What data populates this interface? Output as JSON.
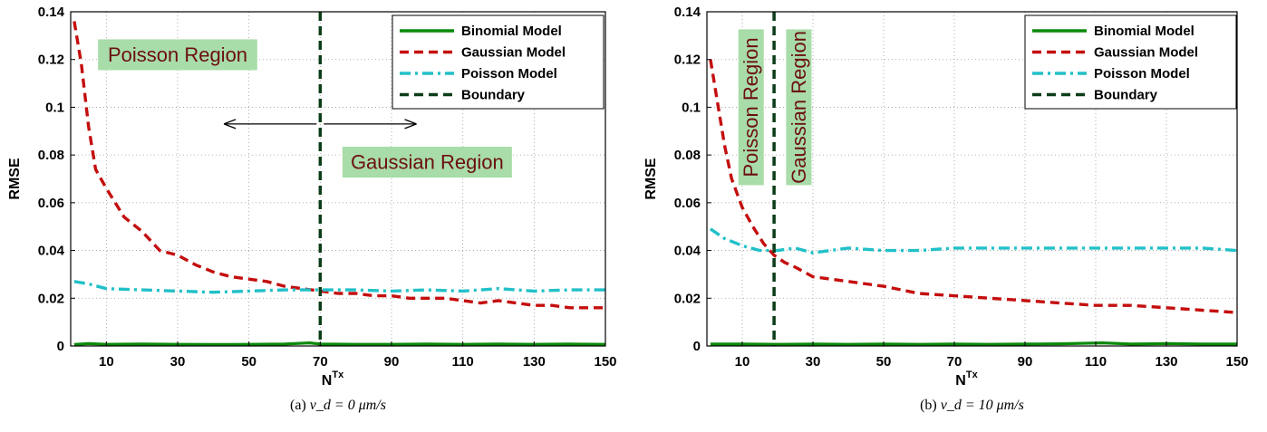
{
  "colors": {
    "binomial": "#0a8a0a",
    "gaussian": "#c40e0e",
    "poisson": "#22c0c8",
    "boundary": "#0b3d18",
    "region_bg": "#a8dca8",
    "region_text": "#6b0f0f"
  },
  "chart_data": [
    {
      "type": "line",
      "caption": {
        "prefix": "(a)",
        "formula": "v_d = 0 μm/s"
      },
      "xlabel": "N",
      "xlabel_sup": "Tx",
      "ylabel": "RMSE",
      "xlim": [
        0,
        150
      ],
      "ylim": [
        0,
        0.14
      ],
      "xticks": [
        10,
        30,
        50,
        70,
        90,
        110,
        130,
        150
      ],
      "yticks": [
        0,
        0.02,
        0.04,
        0.06,
        0.08,
        0.1,
        0.12,
        0.14
      ],
      "ytick_labels": [
        "0",
        "0.02",
        "0.04",
        "0.06",
        "0.08",
        "0.1",
        "0.12",
        "0.14"
      ],
      "grid": true,
      "legend_position": "top-right",
      "boundary_x": 70,
      "regions": [
        {
          "label": "Poisson Region",
          "x": 30,
          "y": 0.122
        },
        {
          "label": "Gaussian Region",
          "x": 100,
          "y": 0.077
        }
      ],
      "arrows": [
        {
          "from": 69,
          "to": 43,
          "y": 0.093
        },
        {
          "from": 71,
          "to": 97,
          "y": 0.093
        }
      ],
      "series": [
        {
          "name": "Binomial Model",
          "key": "binomial",
          "dash": "solid",
          "x": [
            1,
            5,
            10,
            20,
            30,
            40,
            50,
            60,
            67,
            70,
            80,
            90,
            100,
            110,
            120,
            130,
            140,
            150
          ],
          "y": [
            0.0006,
            0.001,
            0.0007,
            0.0008,
            0.0007,
            0.0006,
            0.0007,
            0.0008,
            0.0013,
            0.0008,
            0.0007,
            0.0007,
            0.0008,
            0.0007,
            0.0008,
            0.0007,
            0.0008,
            0.0007
          ]
        },
        {
          "name": "Gaussian Model",
          "key": "gaussian",
          "dash": "dashed",
          "x": [
            1,
            3,
            5,
            7,
            10,
            15,
            20,
            25,
            30,
            35,
            40,
            45,
            50,
            55,
            60,
            65,
            70,
            75,
            80,
            85,
            90,
            95,
            100,
            105,
            110,
            115,
            120,
            125,
            130,
            135,
            140,
            145,
            150
          ],
          "y": [
            0.136,
            0.118,
            0.092,
            0.074,
            0.066,
            0.054,
            0.048,
            0.04,
            0.038,
            0.034,
            0.031,
            0.029,
            0.028,
            0.027,
            0.025,
            0.024,
            0.023,
            0.022,
            0.022,
            0.021,
            0.021,
            0.02,
            0.02,
            0.02,
            0.019,
            0.018,
            0.019,
            0.018,
            0.017,
            0.017,
            0.016,
            0.016,
            0.016
          ]
        },
        {
          "name": "Poisson Model",
          "key": "poisson",
          "dash": "dashdot",
          "x": [
            1,
            5,
            10,
            20,
            30,
            40,
            50,
            60,
            70,
            80,
            90,
            100,
            110,
            120,
            130,
            140,
            150
          ],
          "y": [
            0.027,
            0.026,
            0.024,
            0.0235,
            0.023,
            0.0225,
            0.023,
            0.0235,
            0.0235,
            0.0235,
            0.023,
            0.0235,
            0.023,
            0.024,
            0.023,
            0.0235,
            0.0235
          ]
        },
        {
          "name": "Boundary",
          "key": "boundary",
          "dash": "dashed",
          "legend_only": true
        }
      ]
    },
    {
      "type": "line",
      "caption": {
        "prefix": "(b)",
        "formula": "v_d = 10 μm/s"
      },
      "xlabel": "N",
      "xlabel_sup": "Tx",
      "ylabel": "RMSE",
      "xlim": [
        0,
        150
      ],
      "ylim": [
        0,
        0.14
      ],
      "xticks": [
        10,
        30,
        50,
        70,
        90,
        110,
        130,
        150
      ],
      "yticks": [
        0,
        0.02,
        0.04,
        0.06,
        0.08,
        0.1,
        0.12,
        0.14
      ],
      "ytick_labels": [
        "0",
        "0.02",
        "0.04",
        "0.06",
        "0.08",
        "0.1",
        "0.12",
        "0.14"
      ],
      "grid": true,
      "legend_position": "top-right",
      "boundary_x": 19,
      "regions": [
        {
          "label": "Poisson Region",
          "x": 12.5,
          "y": 0.1,
          "vertical": true
        },
        {
          "label": "Gaussian Region",
          "x": 26,
          "y": 0.1,
          "vertical": true
        }
      ],
      "series": [
        {
          "name": "Binomial Model",
          "key": "binomial",
          "dash": "solid",
          "x": [
            1,
            10,
            20,
            30,
            40,
            50,
            60,
            70,
            80,
            90,
            100,
            112,
            120,
            130,
            140,
            150
          ],
          "y": [
            0.0008,
            0.0008,
            0.0007,
            0.0008,
            0.0007,
            0.0008,
            0.0007,
            0.0008,
            0.0007,
            0.0008,
            0.0009,
            0.0013,
            0.0008,
            0.001,
            0.0008,
            0.0008
          ]
        },
        {
          "name": "Gaussian Model",
          "key": "gaussian",
          "dash": "dashed",
          "x": [
            1,
            3,
            5,
            7,
            10,
            13,
            16,
            19,
            22,
            25,
            30,
            40,
            50,
            60,
            70,
            80,
            90,
            100,
            110,
            120,
            130,
            140,
            150
          ],
          "y": [
            0.12,
            0.102,
            0.084,
            0.07,
            0.058,
            0.05,
            0.043,
            0.038,
            0.035,
            0.033,
            0.029,
            0.027,
            0.025,
            0.022,
            0.021,
            0.02,
            0.019,
            0.018,
            0.017,
            0.017,
            0.016,
            0.015,
            0.014
          ]
        },
        {
          "name": "Poisson Model",
          "key": "poisson",
          "dash": "dashdot",
          "x": [
            1,
            5,
            10,
            15,
            20,
            25,
            30,
            40,
            50,
            60,
            70,
            80,
            90,
            100,
            110,
            120,
            130,
            140,
            150
          ],
          "y": [
            0.049,
            0.045,
            0.042,
            0.04,
            0.04,
            0.041,
            0.039,
            0.041,
            0.04,
            0.04,
            0.041,
            0.041,
            0.041,
            0.041,
            0.041,
            0.041,
            0.041,
            0.041,
            0.04
          ]
        },
        {
          "name": "Boundary",
          "key": "boundary",
          "dash": "dashed",
          "legend_only": true
        }
      ]
    }
  ]
}
